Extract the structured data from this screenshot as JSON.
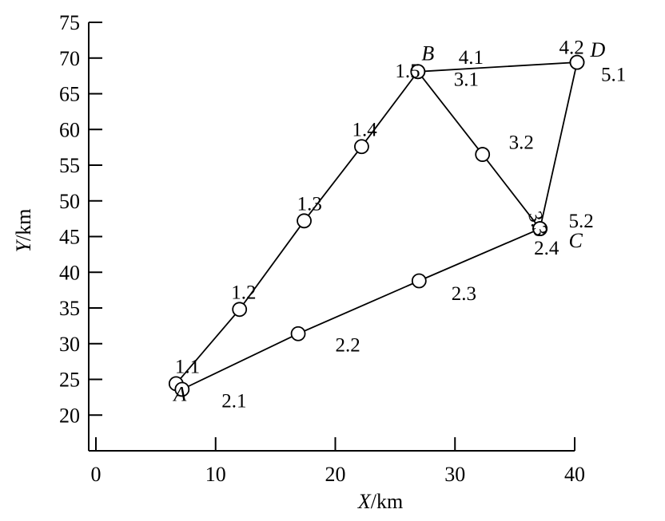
{
  "chart_data": {
    "type": "scatter",
    "xlabel": {
      "var": "X",
      "unit": "/km"
    },
    "ylabel": {
      "var": "Y",
      "unit": "/km"
    },
    "xlim": [
      0,
      40
    ],
    "ylim": [
      15,
      75
    ],
    "xticks": [
      0,
      10,
      20,
      30,
      40
    ],
    "yticks": [
      20,
      25,
      30,
      35,
      40,
      45,
      50,
      55,
      60,
      65,
      70,
      75
    ],
    "grid": false,
    "nodes": [
      {
        "label": "A",
        "x": 6.5,
        "y": 22.0
      },
      {
        "label": "B",
        "x": 27.2,
        "y": 69.7
      },
      {
        "label": "C",
        "x": 39.5,
        "y": 43.5
      },
      {
        "label": "D",
        "x": 41.3,
        "y": 70.2
      }
    ],
    "routes": [
      [
        [
          6.7,
          24.4
        ],
        [
          12.0,
          34.8
        ],
        [
          17.4,
          47.2
        ],
        [
          22.2,
          57.6
        ],
        [
          26.9,
          68.1
        ]
      ],
      [
        [
          7.2,
          23.6
        ],
        [
          16.9,
          31.4
        ],
        [
          27.0,
          38.8
        ],
        [
          37.1,
          46.1
        ]
      ],
      [
        [
          26.9,
          68.1
        ],
        [
          32.3,
          56.5
        ],
        [
          37.1,
          46.1
        ]
      ],
      [
        [
          26.9,
          68.1
        ],
        [
          40.2,
          69.4
        ],
        [
          37.1,
          46.1
        ]
      ]
    ],
    "points": [
      {
        "label": "1.1",
        "x": 6.7,
        "y": 24.4,
        "lx": 6.6,
        "ly": 25.9
      },
      {
        "label": "2.1",
        "x": 7.2,
        "y": 23.6,
        "lx": 10.5,
        "ly": 21.1
      },
      {
        "label": "1.2",
        "x": 12.0,
        "y": 34.8,
        "lx": 11.3,
        "ly": 36.3
      },
      {
        "label": "1.3",
        "x": 17.4,
        "y": 47.2,
        "lx": 16.8,
        "ly": 48.7
      },
      {
        "label": "1.4",
        "x": 22.2,
        "y": 57.6,
        "lx": 21.4,
        "ly": 59.1
      },
      {
        "label": "1.5",
        "x": 26.9,
        "y": 68.1,
        "lx": 25.0,
        "ly": 67.3
      },
      {
        "label": "2.2",
        "x": 16.9,
        "y": 31.4,
        "lx": 20.0,
        "ly": 28.9
      },
      {
        "label": "2.3",
        "x": 27.0,
        "y": 38.8,
        "lx": 29.7,
        "ly": 36.1
      },
      {
        "label": "2.4",
        "x": 37.1,
        "y": 46.1,
        "lx": 36.6,
        "ly": 42.5
      },
      {
        "label": "3.1",
        "x": 26.9,
        "y": 68.1,
        "lx": 29.9,
        "ly": 66.1
      },
      {
        "label": "3.2",
        "x": 32.3,
        "y": 56.5,
        "lx": 34.5,
        "ly": 57.3
      },
      {
        "label": "3.3",
        "x": 37.1,
        "y": 46.1,
        "lx": 36.1,
        "ly": 48.2,
        "rotate": 73
      },
      {
        "label": "4.1",
        "x": 26.9,
        "y": 68.1,
        "lx": 30.3,
        "ly": 69.2
      },
      {
        "label": "4.2",
        "x": 40.2,
        "y": 69.4,
        "lx": 38.7,
        "ly": 70.6
      },
      {
        "label": "5.1",
        "x": 40.2,
        "y": 69.4,
        "lx": 42.2,
        "ly": 66.8
      },
      {
        "label": "5.2",
        "x": 37.1,
        "y": 46.1,
        "lx": 39.5,
        "ly": 46.3
      }
    ]
  }
}
